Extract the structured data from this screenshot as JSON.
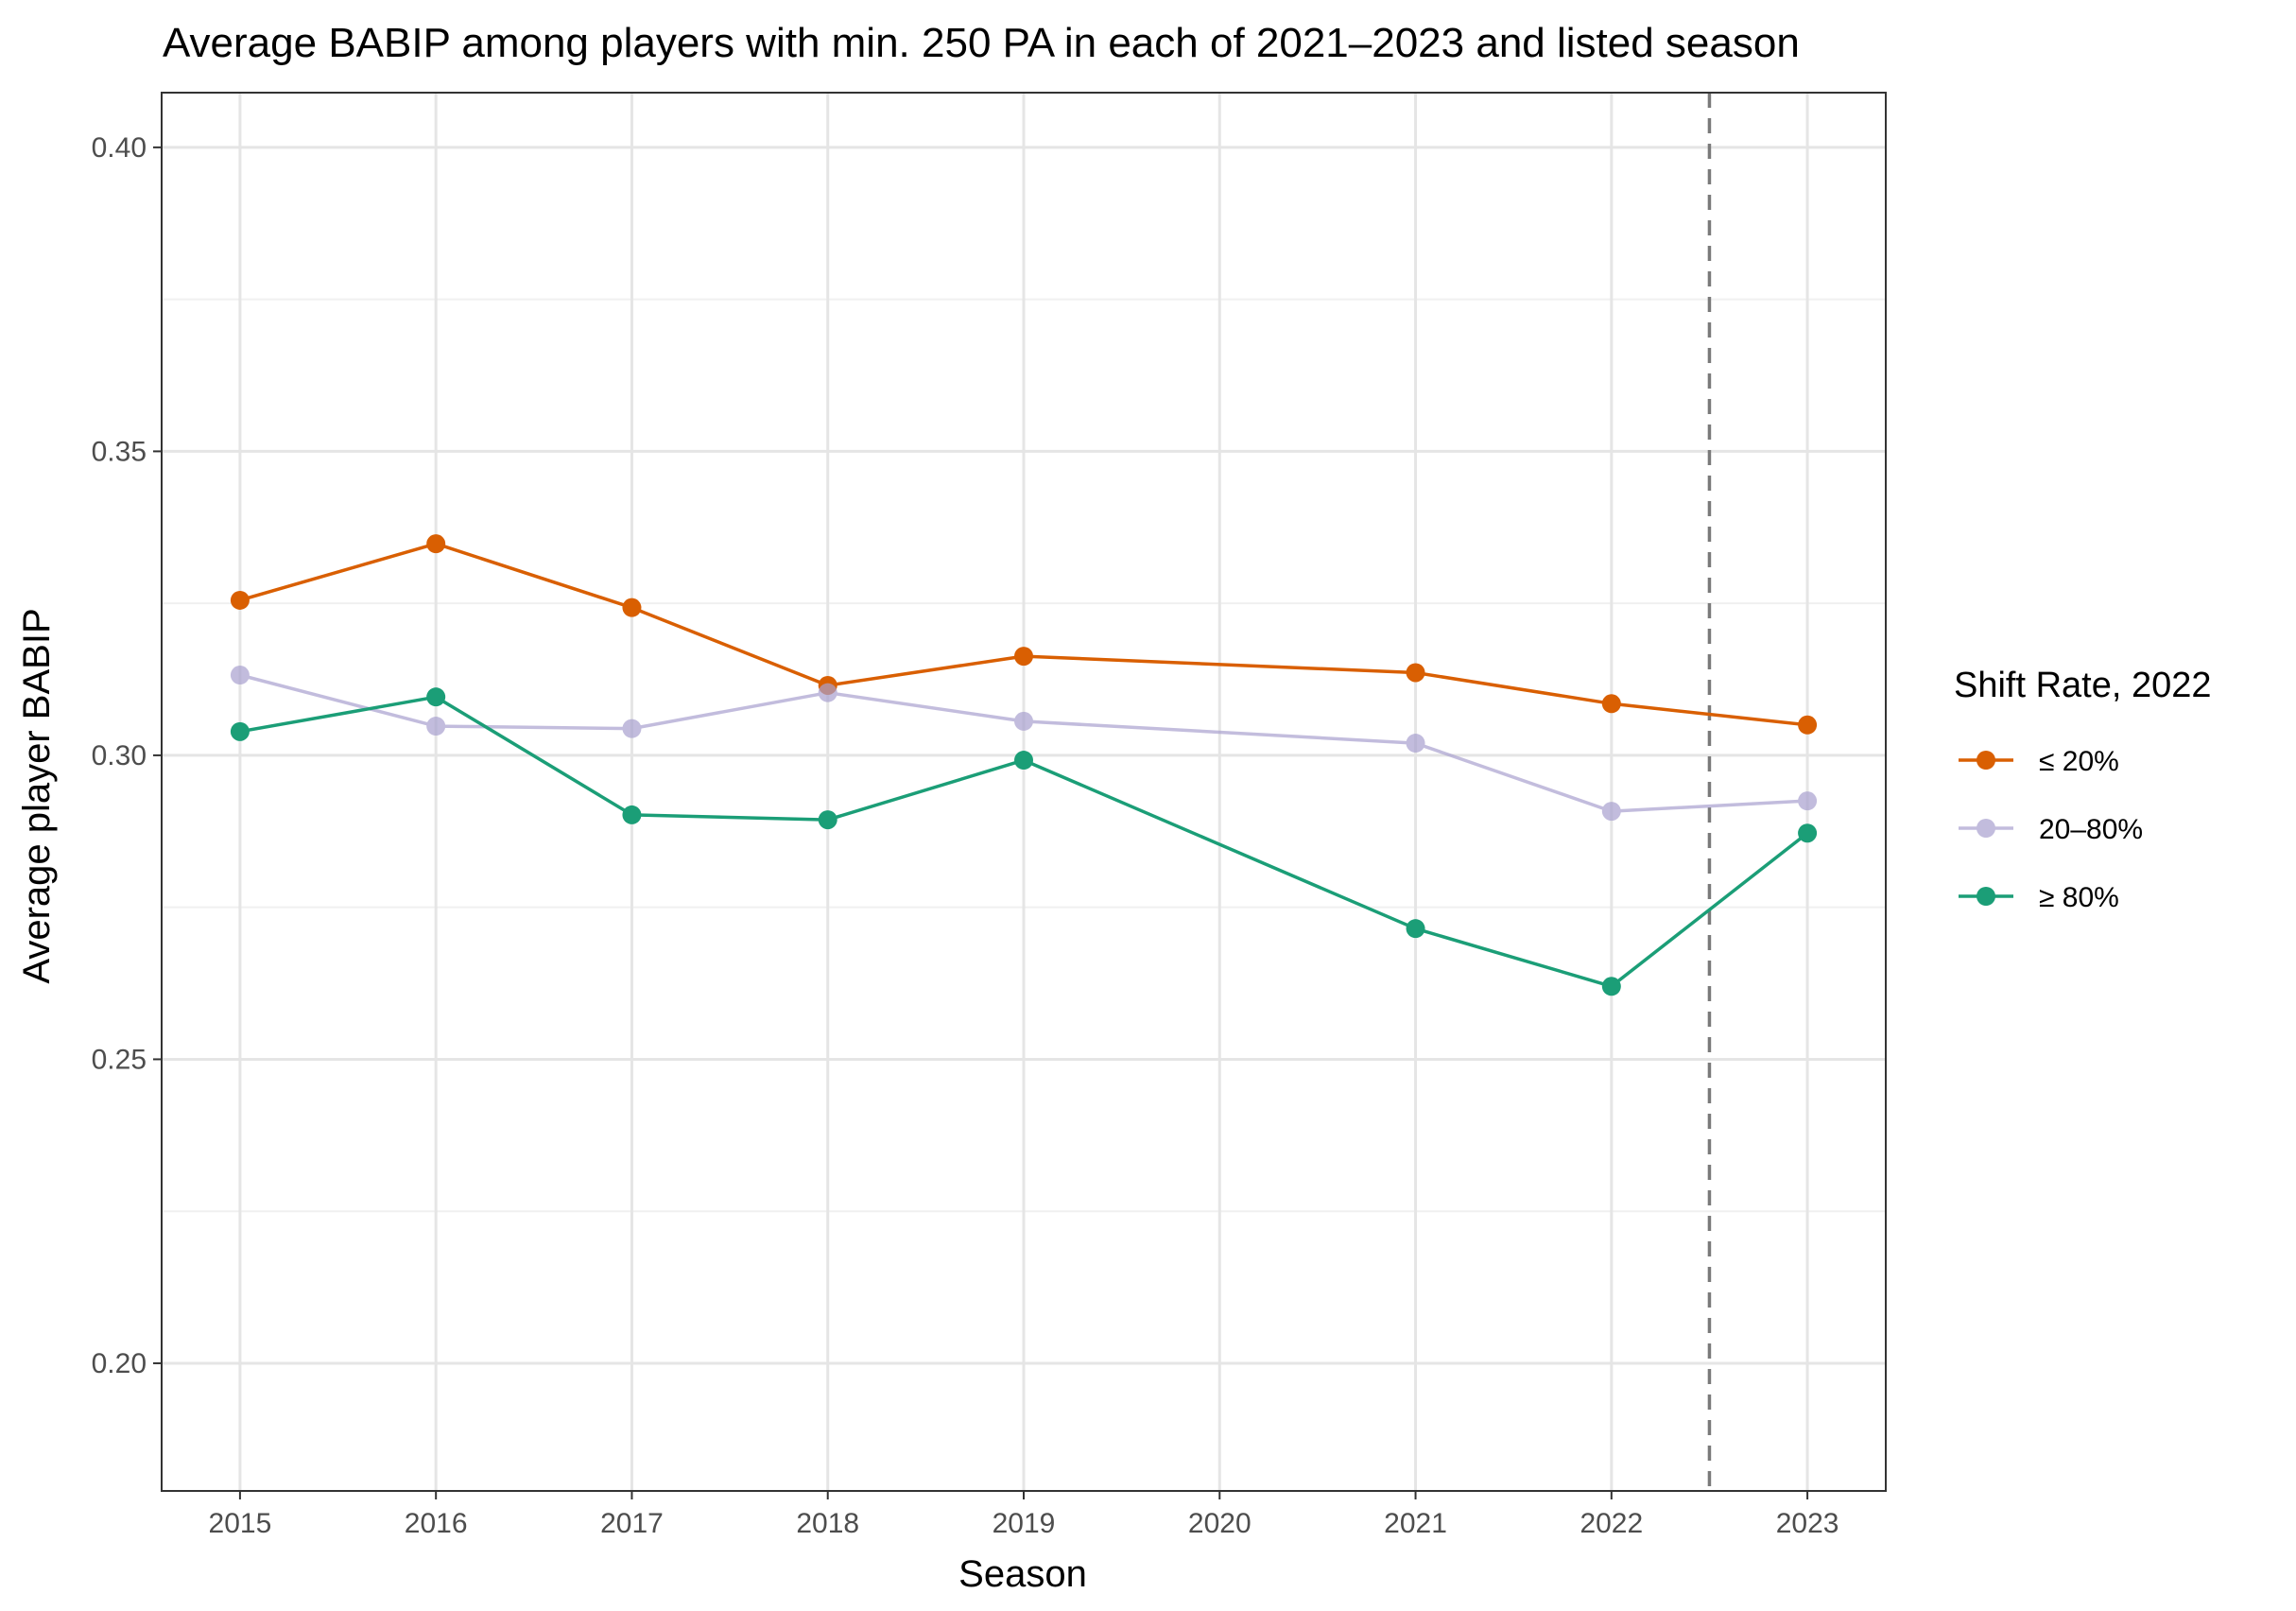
{
  "chart_data": {
    "type": "line",
    "title": "Average BABIP among players with min. 250 PA in each of 2021–2023 and listed season",
    "xlabel": "Season",
    "ylabel": "Average player BABIP",
    "x": [
      2015,
      2016,
      2017,
      2018,
      2019,
      2021,
      2022,
      2023
    ],
    "x_ticks": [
      "2015",
      "2016",
      "2017",
      "2018",
      "2019",
      "2020",
      "2021",
      "2022",
      "2023"
    ],
    "xlim": [
      2014.6,
      2023.4
    ],
    "ylim": [
      0.179,
      0.409
    ],
    "y_ticks": [
      "0.20",
      "0.25",
      "0.30",
      "0.35",
      "0.40"
    ],
    "grid": true,
    "reference_line": {
      "x": 2022.5,
      "style": "dashed",
      "color": "#7a7a7a"
    },
    "legend": {
      "title": "Shift Rate, 2022",
      "position": "right"
    },
    "series": [
      {
        "name": "≤ 20%",
        "color": "#D95F02",
        "opacity": 1.0,
        "values": [
          0.3255,
          0.3348,
          0.3243,
          0.3115,
          0.3163,
          0.3136,
          0.3085,
          0.305
        ]
      },
      {
        "name": "20–80%",
        "color": "#A9A1CF",
        "opacity": 0.7,
        "values": [
          0.3132,
          0.3048,
          0.3044,
          0.3103,
          0.3056,
          0.302,
          0.2908,
          0.2925
        ]
      },
      {
        "name": "≥ 80%",
        "color": "#1B9E77",
        "opacity": 1.0,
        "values": [
          0.3039,
          0.3096,
          0.2902,
          0.2894,
          0.2992,
          0.2715,
          0.262,
          0.2872
        ]
      }
    ]
  }
}
